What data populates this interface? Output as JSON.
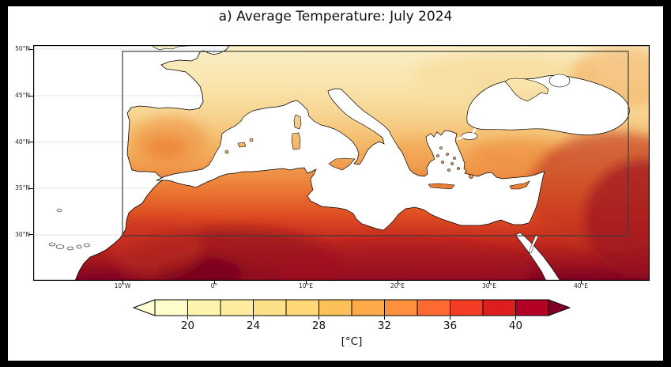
{
  "figure": {
    "title": "a) Average Temperature: July 2024"
  },
  "map": {
    "y_ticks": [
      "50°N",
      "45°N",
      "40°N",
      "35°N",
      "30°N"
    ],
    "x_ticks": [
      "10°W",
      "0°",
      "10°E",
      "20°E",
      "30°E",
      "40°E"
    ]
  },
  "colorbar": {
    "ticks": [
      "20",
      "24",
      "28",
      "32",
      "36",
      "40"
    ],
    "unit": "[°C]",
    "under_color": "#FFFFD4",
    "over_color": "#800026",
    "segment_colors": [
      "#FFFECA",
      "#FFF4AE",
      "#FFEC9F",
      "#FEE187",
      "#FED876",
      "#FEC159",
      "#FEA94A",
      "#FD903D",
      "#FC6A31",
      "#F23C24",
      "#DD1E1E",
      "#B50026"
    ]
  },
  "chart_data": {
    "type": "heatmap",
    "title": "a) Average Temperature: July 2024",
    "variable": "Average Temperature",
    "period": "July 2024",
    "region": "Mediterranean basin (Europe, North Africa, Middle East)",
    "x_axis": {
      "label": "",
      "tick_labels": [
        "10°W",
        "0°",
        "10°E",
        "20°E",
        "30°E",
        "40°E"
      ]
    },
    "y_axis": {
      "label": "",
      "tick_labels": [
        "50°N",
        "45°N",
        "40°N",
        "35°N",
        "30°N"
      ]
    },
    "colorbar": {
      "unit": "°C",
      "tick_values": [
        20,
        24,
        28,
        32,
        36,
        40
      ],
      "value_range": [
        18,
        42
      ],
      "extend": "both",
      "colors": [
        "#FFFFD4",
        "#FFFECA",
        "#FFF4AE",
        "#FFEC9F",
        "#FEE187",
        "#FED876",
        "#FEC159",
        "#FEA94A",
        "#FD903D",
        "#FC6A31",
        "#F23C24",
        "#DD1E1E",
        "#B50026",
        "#800026"
      ]
    },
    "overlays": {
      "analysis_domain_box": {
        "lon_range": [
          "10°W",
          "45°E"
        ],
        "lat_range": [
          "30°N",
          "50°N"
        ]
      },
      "masked_white": [
        "Mediterranean Sea",
        "Black Sea",
        "Atlantic Ocean",
        "Red Sea"
      ]
    },
    "pattern": "Temperatures increase southward: ~20°C pale yellow over northwest and central Europe, ~24-30°C orange over Iberia, Italy, Greece and Anatolia, above 36-40°C dark red over the Sahara, Egypt and the Middle East, with darkest maroon (>40°C) in the western Sahara interior and near the eastern map edge."
  }
}
